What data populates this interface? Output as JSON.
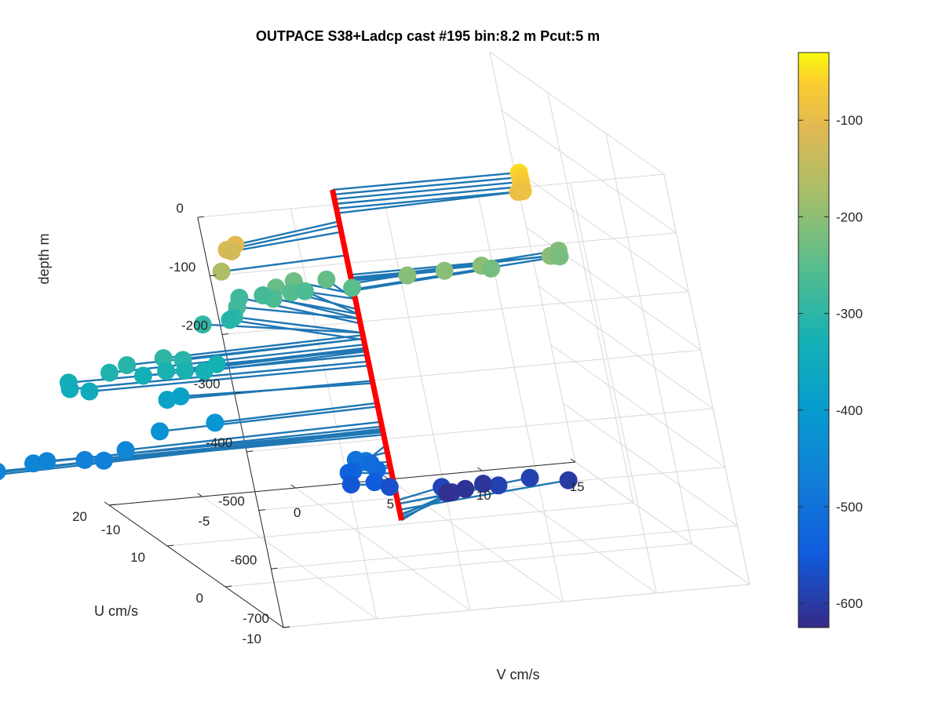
{
  "chart_data": {
    "type": "scatter3d",
    "title": "OUTPACE S38+Ladcp cast #195 bin:8.2 m  Pcut:5 m",
    "xlabel": "U cm/s",
    "ylabel": "V cm/s",
    "zlabel": "depth m",
    "xlim": [
      -10,
      20
    ],
    "ylim": [
      -10,
      15
    ],
    "zlim": [
      -700,
      0
    ],
    "x_ticks": [
      "-10",
      "0",
      "10",
      "20"
    ],
    "y_ticks": [
      "-10",
      "-5",
      "0",
      "5",
      "10",
      "15"
    ],
    "z_ticks": [
      "0",
      "-100",
      "-200",
      "-300",
      "-400",
      "-500",
      "-600",
      "-700"
    ],
    "grid": true,
    "marker_color_by": "depth",
    "colormap": "parula",
    "colorbar": {
      "range": [
        -625,
        -30
      ],
      "ticks": [
        "-100",
        "-200",
        "-300",
        "-400",
        "-500",
        "-600"
      ]
    },
    "stem_color": "#1f77b4",
    "profile_color": "#ff0000",
    "points": [
      {
        "u": 0,
        "v": 10,
        "z": -52
      },
      {
        "u": 0,
        "v": 10,
        "z": -60
      },
      {
        "u": 0,
        "v": 10,
        "z": -68
      },
      {
        "u": 0,
        "v": 10,
        "z": -76
      },
      {
        "u": 0,
        "v": 10,
        "z": -84
      },
      {
        "u": 1,
        "v": 10,
        "z": -92
      },
      {
        "u": -3,
        "v": -6.5,
        "z": -106
      },
      {
        "u": -3,
        "v": -7,
        "z": -113
      },
      {
        "u": -2,
        "v": -6.5,
        "z": -124
      },
      {
        "u": -1,
        "v": -7,
        "z": -164
      },
      {
        "u": 0,
        "v": 11,
        "z": -197
      },
      {
        "u": 1,
        "v": 11,
        "z": -204
      },
      {
        "u": 0,
        "v": 7,
        "z": -202
      },
      {
        "u": 0,
        "v": 5,
        "z": -205
      },
      {
        "u": 0,
        "v": 3,
        "z": -207
      },
      {
        "u": 3,
        "v": 12,
        "z": -212
      },
      {
        "u": 3,
        "v": 12,
        "z": -222
      },
      {
        "u": 2,
        "v": 8,
        "z": -224
      },
      {
        "u": 4,
        "v": -2,
        "z": -230
      },
      {
        "u": 4,
        "v": -3,
        "z": -238
      },
      {
        "u": 5,
        "v": 0,
        "z": -240
      },
      {
        "u": 5,
        "v": -2,
        "z": -256
      },
      {
        "u": 5,
        "v": -3,
        "z": -264
      },
      {
        "u": 5,
        "v": -5,
        "z": -272
      },
      {
        "u": 4,
        "v": 1,
        "z": -250
      },
      {
        "u": 6,
        "v": -1,
        "z": -264
      },
      {
        "u": 6,
        "v": -5,
        "z": -296
      },
      {
        "u": 8,
        "v": -4,
        "z": -280
      },
      {
        "u": 7,
        "v": -3,
        "z": -272
      },
      {
        "u": 5,
        "v": -7,
        "z": -296
      },
      {
        "u": 7,
        "v": -5,
        "z": -308
      },
      {
        "u": -1,
        "v": -10,
        "z": -306
      },
      {
        "u": -1,
        "v": -11,
        "z": -300
      },
      {
        "u": -1,
        "v": -13,
        "z": -306
      },
      {
        "u": -1,
        "v": -14,
        "z": -316
      },
      {
        "u": -1,
        "v": -11,
        "z": -322
      },
      {
        "u": -1,
        "v": -10,
        "z": -324
      },
      {
        "u": -1,
        "v": -9,
        "z": -328
      },
      {
        "u": 0,
        "v": -8,
        "z": -326
      },
      {
        "u": 0,
        "v": -12,
        "z": -334
      },
      {
        "u": 0,
        "v": -16,
        "z": -334
      },
      {
        "u": 0,
        "v": -16,
        "z": -345
      },
      {
        "u": 0,
        "v": -15,
        "z": -352
      },
      {
        "u": 0,
        "v": -11,
        "z": -378
      },
      {
        "u": 1,
        "v": -10,
        "z": -382
      },
      {
        "u": -1,
        "v": -9,
        "z": -416
      },
      {
        "u": -1,
        "v": -12,
        "z": -422
      },
      {
        "u": -1,
        "v": -14,
        "z": -448
      },
      {
        "u": -1,
        "v": -19,
        "z": -456
      },
      {
        "u": -1,
        "v": -21,
        "z": -464
      },
      {
        "u": -2,
        "v": -24,
        "z": -460
      },
      {
        "u": -2,
        "v": -25,
        "z": -464
      },
      {
        "u": 0,
        "v": -18,
        "z": -462
      },
      {
        "u": 0,
        "v": -16,
        "z": -466
      },
      {
        "u": 0,
        "v": -15,
        "z": -470
      },
      {
        "u": -3,
        "v": -2,
        "z": -488
      },
      {
        "u": -1,
        "v": -2,
        "z": -500
      },
      {
        "u": -1,
        "v": -1,
        "z": -520
      },
      {
        "u": 0,
        "v": -1,
        "z": -516
      },
      {
        "u": 0,
        "v": -2,
        "z": -526
      },
      {
        "u": 1,
        "v": -2,
        "z": -536
      },
      {
        "u": 0,
        "v": -1,
        "z": -548
      },
      {
        "u": 1,
        "v": -2,
        "z": -556
      },
      {
        "u": 1,
        "v": 0,
        "z": -566
      },
      {
        "u": 2,
        "v": 3,
        "z": -582
      },
      {
        "u": 2,
        "v": 6,
        "z": -588
      },
      {
        "u": 3,
        "v": 8,
        "z": -588
      },
      {
        "u": 3,
        "v": 10,
        "z": -598
      },
      {
        "u": 4,
        "v": 4,
        "z": -608
      },
      {
        "u": 5,
        "v": 4,
        "z": -616
      },
      {
        "u": 5,
        "v": 5,
        "z": -612
      },
      {
        "u": 5,
        "v": 6,
        "z": -606
      }
    ]
  }
}
